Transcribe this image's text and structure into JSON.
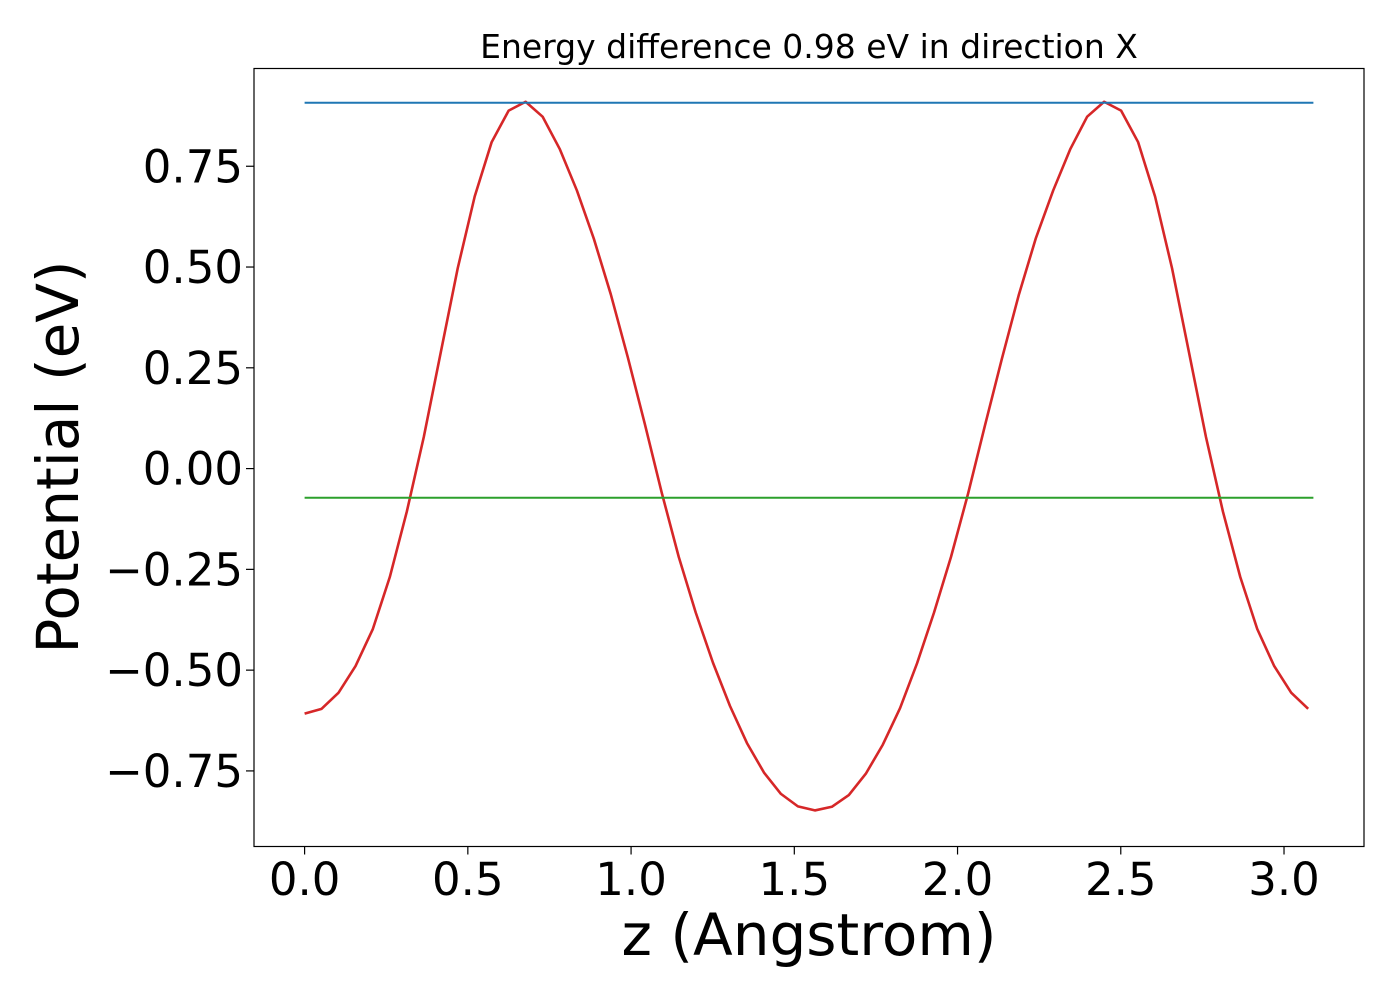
{
  "chart_data": {
    "type": "line",
    "title": "Energy difference 0.98 eV in direction X",
    "xlabel": "z (Angstrom)",
    "ylabel": "Potential (eV)",
    "xlim": [
      -0.155,
      3.245
    ],
    "ylim": [
      -0.9375,
      0.9925
    ],
    "xticks": [
      0.0,
      0.5,
      1.0,
      1.5,
      2.0,
      2.5,
      3.0
    ],
    "xtick_labels": [
      "0.0",
      "0.5",
      "1.0",
      "1.5",
      "2.0",
      "2.5",
      "3.0"
    ],
    "yticks": [
      -0.75,
      -0.5,
      -0.25,
      0.0,
      0.25,
      0.5,
      0.75
    ],
    "ytick_labels": [
      "−0.75",
      "−0.50",
      "−0.25",
      "0.00",
      "0.25",
      "0.50",
      "0.75"
    ],
    "grid": false,
    "series": [
      {
        "color": "#d62728",
        "x": [
          0.0,
          0.052,
          0.104,
          0.156,
          0.209,
          0.261,
          0.313,
          0.365,
          0.417,
          0.469,
          0.521,
          0.573,
          0.625,
          0.677,
          0.729,
          0.782,
          0.834,
          0.886,
          0.938,
          0.99,
          1.042,
          1.094,
          1.146,
          1.198,
          1.251,
          1.303,
          1.355,
          1.407,
          1.459,
          1.511,
          1.563,
          1.615,
          1.667,
          1.719,
          1.771,
          1.824,
          1.876,
          1.928,
          1.98,
          2.032,
          2.084,
          2.136,
          2.188,
          2.24,
          2.293,
          2.345,
          2.397,
          2.449,
          2.501,
          2.553,
          2.605,
          2.657,
          2.709,
          2.761,
          2.813,
          2.866,
          2.918,
          2.97,
          3.022,
          3.074
        ],
        "y": [
          -0.608,
          -0.596,
          -0.556,
          -0.49,
          -0.398,
          -0.269,
          -0.107,
          0.078,
          0.288,
          0.497,
          0.675,
          0.81,
          0.888,
          0.91,
          0.873,
          0.792,
          0.69,
          0.57,
          0.432,
          0.276,
          0.111,
          -0.06,
          -0.219,
          -0.357,
          -0.482,
          -0.589,
          -0.681,
          -0.754,
          -0.807,
          -0.838,
          -0.848,
          -0.839,
          -0.81,
          -0.757,
          -0.685,
          -0.594,
          -0.483,
          -0.357,
          -0.219,
          -0.063,
          0.107,
          0.273,
          0.432,
          0.572,
          0.69,
          0.792,
          0.873,
          0.91,
          0.888,
          0.81,
          0.675,
          0.497,
          0.288,
          0.078,
          -0.107,
          -0.269,
          -0.398,
          -0.49,
          -0.556,
          -0.596
        ]
      },
      {
        "color": "#1f77b4",
        "x": [
          0.0,
          3.09
        ],
        "y": [
          0.9075,
          0.9075
        ]
      },
      {
        "color": "#2ca02c",
        "x": [
          0.0,
          3.09
        ],
        "y": [
          -0.0725,
          -0.0725
        ]
      }
    ]
  }
}
